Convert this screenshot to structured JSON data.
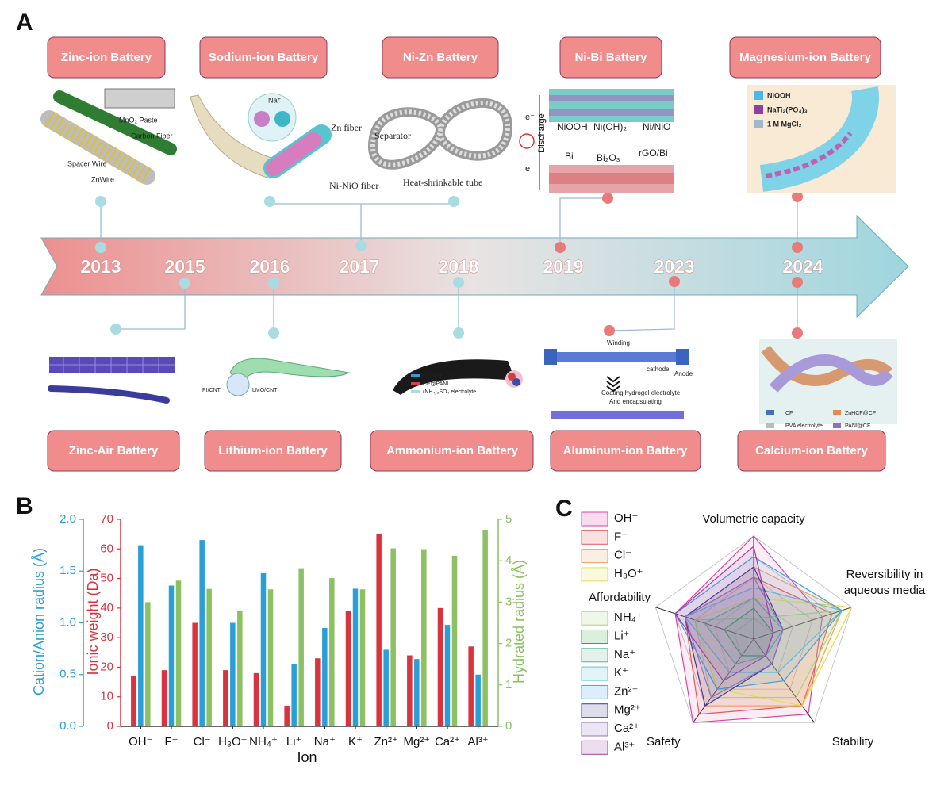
{
  "panel_a": {
    "label": "A",
    "years": [
      "2013",
      "2015",
      "2016",
      "2017",
      "2018",
      "2019",
      "2023",
      "2024"
    ],
    "top_boxes": [
      "Zinc-ion Battery",
      "Sodium-ion Battery",
      "Ni-Zn Battery",
      "Ni-Bi Battery",
      "Magnesium-ion Battery"
    ],
    "bottom_boxes": [
      "Zinc-Air Battery",
      "Lithium-ion Battery",
      "Ammonium-ion Battery",
      "Aluminum-ion Battery",
      "Calcium-ion Battery"
    ],
    "illustrations": {
      "zinc_ion": [
        "MnO₂ Paste",
        "Carbon Fiber",
        "Spacer Wire",
        "ZnWire"
      ],
      "sodium_ion": [
        "Na⁺"
      ],
      "ni_zn": [
        "Zn fiber",
        "Separator",
        "Ni-NiO fiber",
        "Heat-shrinkable tube"
      ],
      "ni_bi": [
        "Discharge",
        "NiOOH",
        "Ni(OH)₂",
        "Ni/NiO",
        "Bi",
        "Bi₂O₃",
        "rGO/Bi",
        "e⁻",
        "e⁻"
      ],
      "magnesium_ion": [
        "NiOOH",
        "NaTi₂(PO₄)₃",
        "1 M MgCl₂"
      ],
      "lithium_ion": [
        "PI/CNT",
        "LMO/CNT"
      ],
      "ammonium_ion": [
        "CF@NH₄V₄O₁₀",
        "CF@PANI",
        "(NH₄)₂SO₄ electrolyte"
      ],
      "aluminum_ion": [
        "Winding",
        "cathode",
        "Anode",
        "Coating hydrogel electrolyte",
        "And encapsulating"
      ],
      "calcium_ion": [
        "CF",
        "ZnHCF@CF",
        "PVA electrolyte",
        "PANI@CF"
      ]
    }
  },
  "chart_data": [
    {
      "type": "bar",
      "panel_label": "B",
      "categories": [
        "OH⁻",
        "F⁻",
        "Cl⁻",
        "H₃O⁺",
        "NH₄⁺",
        "Li⁺",
        "Na⁺",
        "K⁺",
        "Zn²⁺",
        "Mg²⁺",
        "Ca²⁺",
        "Al³⁺"
      ],
      "xlabel": "Ion",
      "ylabel": "Ionic weight (Da)",
      "y2label": "Hydrated radius (Å)",
      "y3label": "Cation/Anion radius (Å)",
      "ylim": [
        0,
        70
      ],
      "yticks": [
        0,
        10,
        20,
        30,
        40,
        50,
        60,
        70
      ],
      "y2lim": [
        0,
        5
      ],
      "y2ticks": [
        0,
        1,
        2,
        3,
        4,
        5
      ],
      "y3lim": [
        0,
        2
      ],
      "y3ticks": [
        {
          "value": 0,
          "label": "0.0"
        },
        0.5,
        {
          "value": 1,
          "label": "1.0"
        },
        1.5,
        {
          "value": 2,
          "label": "2.0"
        }
      ],
      "series": [
        {
          "name": "Ionic weight",
          "color": "#d9333f",
          "axis": "y",
          "values": [
            17,
            19,
            35,
            19,
            18,
            7,
            23,
            39,
            65,
            24,
            40,
            27
          ]
        },
        {
          "name": "Cation/Anion radius",
          "color": "#2a9fd6",
          "axis": "y3",
          "values": [
            1.75,
            1.36,
            1.8,
            1.0,
            1.48,
            0.6,
            0.95,
            1.33,
            0.74,
            0.65,
            0.98,
            0.5
          ]
        },
        {
          "name": "Hydrated radius",
          "color": "#8cc063",
          "axis": "y2",
          "values": [
            3.0,
            3.52,
            3.32,
            2.8,
            3.31,
            3.82,
            3.58,
            3.31,
            4.3,
            4.28,
            4.12,
            4.75
          ]
        }
      ]
    },
    {
      "type": "radar",
      "panel_label": "C",
      "axes": [
        "Volumetric capacity",
        "Reversibility in aqueous media",
        "Stability",
        "Safety",
        "Affordability"
      ],
      "rlim": [
        0,
        5
      ],
      "rticks": [
        1,
        2,
        3,
        4,
        5
      ],
      "series": [
        {
          "name": "OH⁻",
          "color": "#e040a0",
          "values": [
            5,
            3.5,
            4.5,
            5,
            4
          ]
        },
        {
          "name": "F⁻",
          "color": "#e05a5a",
          "values": [
            3,
            4,
            4,
            4.5,
            3.5
          ]
        },
        {
          "name": "Cl⁻",
          "color": "#f0a060",
          "values": [
            3.5,
            4.5,
            4,
            4,
            3.5
          ]
        },
        {
          "name": "H₃O⁺",
          "color": "#e6dc50",
          "values": [
            2,
            5,
            4,
            3,
            3
          ]
        },
        {
          "name": "NH₄⁺",
          "color": "#a8d080",
          "values": [
            1,
            4.5,
            3.5,
            3.5,
            3
          ]
        },
        {
          "name": "Li⁺",
          "color": "#3f9f3f",
          "values": [
            1.5,
            1,
            1,
            1,
            1.5
          ]
        },
        {
          "name": "Na⁺",
          "color": "#5fb08f",
          "values": [
            2,
            1.5,
            1,
            1.5,
            2.5
          ]
        },
        {
          "name": "K⁺",
          "color": "#60c0d0",
          "values": [
            2.5,
            4.5,
            2,
            2,
            3.5
          ]
        },
        {
          "name": "Zn²⁺",
          "color": "#3ea0e0",
          "values": [
            4,
            4.5,
            2.5,
            3,
            4
          ]
        },
        {
          "name": "Mg²⁺",
          "color": "#3d3d90",
          "values": [
            3.5,
            1.5,
            1.5,
            4,
            3.5
          ]
        },
        {
          "name": "Ca²⁺",
          "color": "#9070c0",
          "values": [
            3,
            1.5,
            1.5,
            3.5,
            3.5
          ]
        },
        {
          "name": "Al³⁺",
          "color": "#a040a0",
          "values": [
            4.5,
            1,
            1,
            2.5,
            4
          ]
        }
      ]
    }
  ]
}
